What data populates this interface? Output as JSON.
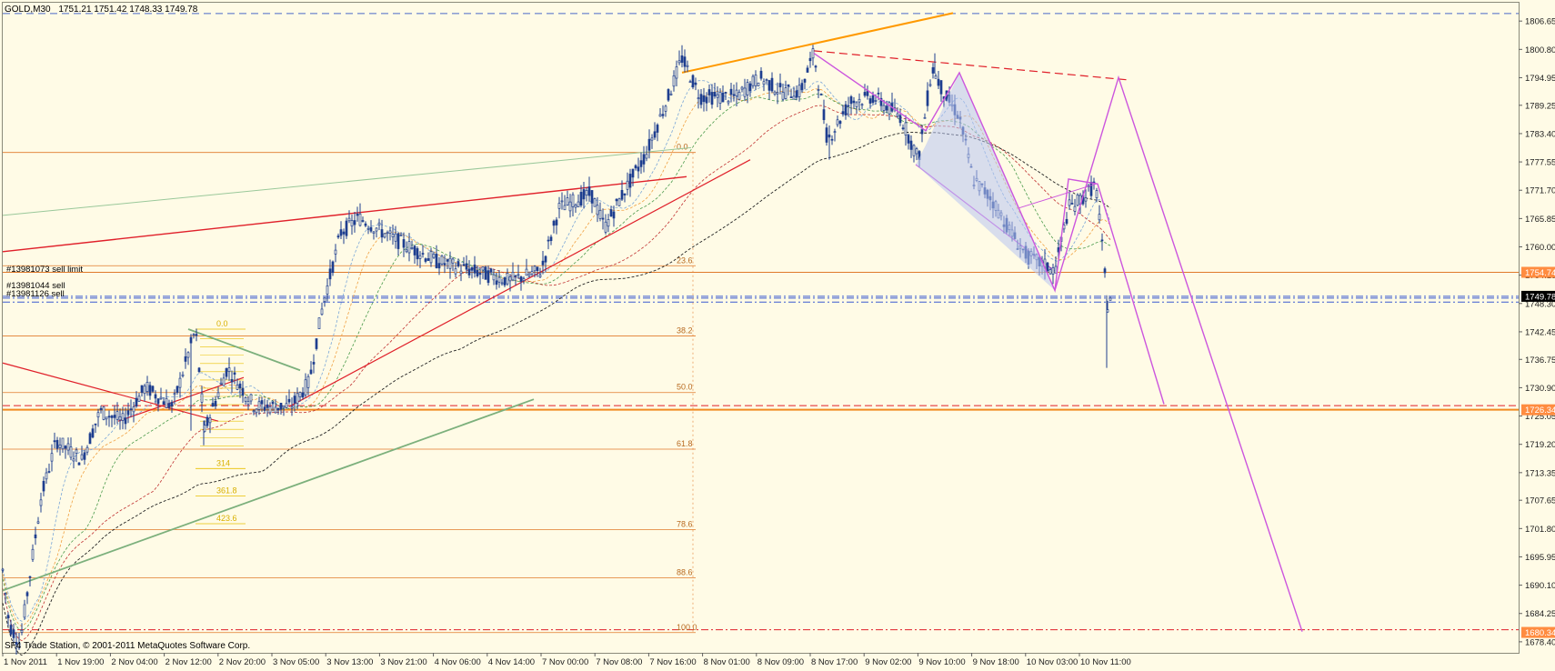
{
  "header": {
    "symbol": "GOLD,M30",
    "ohlc": "1751.21 1751.42 1748.33 1749.78"
  },
  "footer": {
    "copyright": "SF4 Trade Station, © 2001-2011 MetaQuotes Software Corp."
  },
  "colors": {
    "background": "#fffbe6",
    "bull": "#1f3f8f",
    "bear": "#1f3f8f",
    "fib": "#e07a2a",
    "fib_levels": "#e8c000",
    "trend_red": "#e0202a",
    "trend_green": "#7cb07c",
    "orange_line": "#ff9900",
    "pattern": "#cc55dd",
    "current_price": "#000000"
  },
  "orders": [
    {
      "label": "#13981073 sell limit",
      "price": 1754.74
    },
    {
      "label": "#13981044 sell",
      "price": 1749.4
    },
    {
      "label": "#13981126 sell",
      "price": 1748.6
    }
  ],
  "chart_data": {
    "type": "candlestick",
    "ylim": [
      1676.5,
      1809.5
    ],
    "y_ticks": [
      "1806.65",
      "1800.80",
      "1794.95",
      "1789.25",
      "1783.40",
      "1777.55",
      "1771.70",
      "1765.85",
      "1760.00",
      "1754.15",
      "1748.30",
      "1742.45",
      "1736.75",
      "1730.90",
      "1725.05",
      "1719.20",
      "1713.35",
      "1707.65",
      "1701.80",
      "1695.95",
      "1690.10",
      "1684.25",
      "1678.40"
    ],
    "x_labels": [
      "1 Nov 2011",
      "1 Nov 19:00",
      "2 Nov 04:00",
      "2 Nov 12:00",
      "2 Nov 20:00",
      "3 Nov 05:00",
      "3 Nov 13:00",
      "3 Nov 21:00",
      "4 Nov 06:00",
      "4 Nov 14:00",
      "7 Nov 00:00",
      "7 Nov 08:00",
      "7 Nov 16:00",
      "8 Nov 01:00",
      "8 Nov 09:00",
      "8 Nov 17:00",
      "9 Nov 02:00",
      "9 Nov 10:00",
      "9 Nov 18:00",
      "10 Nov 03:00",
      "10 Nov 11:00"
    ],
    "price_tags": [
      {
        "value": "1754.74",
        "price": 1754.74,
        "bg": "#ff8c40",
        "fg": "#ffffff"
      },
      {
        "value": "1749.78",
        "price": 1749.78,
        "bg": "#000000",
        "fg": "#ffffff"
      },
      {
        "value": "1726.34",
        "price": 1726.34,
        "bg": "#ff8c40",
        "fg": "#ffffff"
      },
      {
        "value": "1680.34",
        "price": 1680.34,
        "bg": "#ff8c40",
        "fg": "#ffffff"
      }
    ],
    "fib_main": [
      {
        "label": "0.0",
        "price": 1779.5
      },
      {
        "label": "23.6",
        "price": 1756.1
      },
      {
        "label": "38.2",
        "price": 1741.6
      },
      {
        "label": "50.0",
        "price": 1729.9
      },
      {
        "label": "61.8",
        "price": 1718.2
      },
      {
        "label": "78.6",
        "price": 1701.6
      },
      {
        "label": "88.6",
        "price": 1691.6
      },
      {
        "label": "100.0",
        "price": 1680.3
      }
    ],
    "fib_small": [
      {
        "label": "0.0",
        "price": 1743.0
      },
      {
        "label": "314",
        "price": 1714.2
      },
      {
        "label": "361.8",
        "price": 1708.5
      },
      {
        "label": "423.6",
        "price": 1702.8
      }
    ],
    "horizontal_levels": [
      {
        "price": 1726.34,
        "style": "orange-solid"
      },
      {
        "price": 1727.2,
        "style": "red-dash"
      },
      {
        "price": 1680.9,
        "style": "red-dashdot"
      },
      {
        "price": 1808.2,
        "style": "blue-dash"
      }
    ],
    "anchors": [
      [
        0,
        1698
      ],
      [
        10,
        1682
      ],
      [
        22,
        1678
      ],
      [
        45,
        1708
      ],
      [
        62,
        1720
      ],
      [
        90,
        1716
      ],
      [
        110,
        1726
      ],
      [
        135,
        1724
      ],
      [
        160,
        1731
      ],
      [
        190,
        1727
      ],
      [
        215,
        1743
      ],
      [
        225,
        1722
      ],
      [
        250,
        1735
      ],
      [
        280,
        1727
      ],
      [
        320,
        1727
      ],
      [
        340,
        1732
      ],
      [
        355,
        1748
      ],
      [
        375,
        1763
      ],
      [
        395,
        1766
      ],
      [
        430,
        1762
      ],
      [
        480,
        1757
      ],
      [
        520,
        1755
      ],
      [
        560,
        1753
      ],
      [
        595,
        1755
      ],
      [
        615,
        1768
      ],
      [
        650,
        1771
      ],
      [
        665,
        1764
      ],
      [
        685,
        1771
      ],
      [
        710,
        1779
      ],
      [
        735,
        1791
      ],
      [
        750,
        1799
      ],
      [
        770,
        1791
      ],
      [
        810,
        1791
      ],
      [
        835,
        1795
      ],
      [
        860,
        1792
      ],
      [
        880,
        1792
      ],
      [
        895,
        1800
      ],
      [
        910,
        1782
      ],
      [
        935,
        1790
      ],
      [
        960,
        1791
      ],
      [
        990,
        1787
      ],
      [
        1010,
        1778
      ],
      [
        1025,
        1797
      ],
      [
        1040,
        1791
      ],
      [
        1055,
        1787
      ],
      [
        1070,
        1774
      ],
      [
        1090,
        1770
      ],
      [
        1115,
        1762
      ],
      [
        1130,
        1758
      ],
      [
        1160,
        1755
      ],
      [
        1175,
        1768
      ],
      [
        1190,
        1770
      ],
      [
        1205,
        1773
      ],
      [
        1212,
        1760
      ],
      [
        1218,
        1748
      ],
      [
        1222,
        1750
      ]
    ]
  }
}
